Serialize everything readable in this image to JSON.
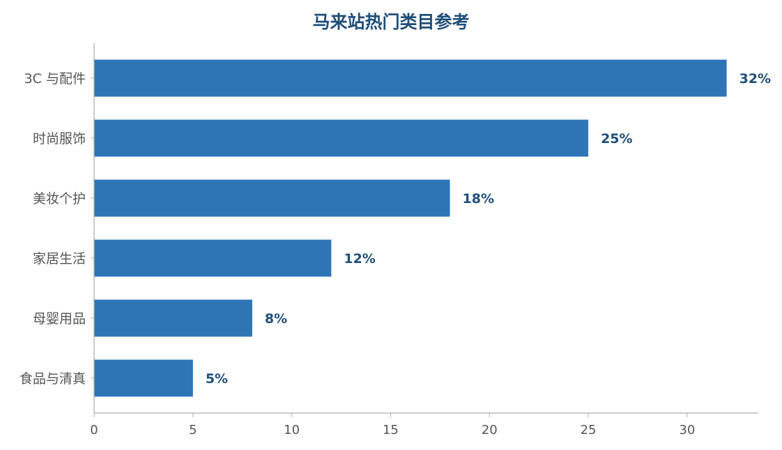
{
  "chart_data": {
    "type": "bar",
    "orientation": "horizontal",
    "title": "马来站热门类目参考",
    "xlabel": "",
    "ylabel": "",
    "categories": [
      "3C 与配件",
      "时尚服饰",
      "美妆个护",
      "家居生活",
      "母婴用品",
      "食品与清真"
    ],
    "values": [
      32,
      25,
      18,
      12,
      8,
      5
    ],
    "value_labels": [
      "32%",
      "25%",
      "18%",
      "12%",
      "8%",
      "5%"
    ],
    "xlim": [
      0,
      33.6
    ],
    "x_ticks": [
      0,
      5,
      10,
      15,
      20,
      25,
      30
    ],
    "grid": false,
    "colors": {
      "bar": "#2e75b6",
      "value_label": "#1f4e79",
      "title": "#1f4e79",
      "axis": "#aaaaaa",
      "tick_label": "#555555"
    }
  }
}
